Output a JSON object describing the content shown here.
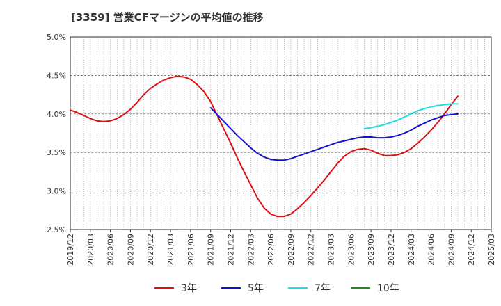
{
  "chart_data": {
    "type": "line",
    "title": "[3359]  営業CFマージンの平均値の推移",
    "xlabel": "",
    "ylabel": "",
    "x_ticks": [
      "2019/12",
      "2020/03",
      "2020/06",
      "2020/09",
      "2020/12",
      "2021/03",
      "2021/06",
      "2021/09",
      "2021/12",
      "2022/03",
      "2022/06",
      "2022/09",
      "2022/12",
      "2023/03",
      "2023/06",
      "2023/09",
      "2023/12",
      "2024/03",
      "2024/06",
      "2024/09",
      "2024/12",
      "2025/03"
    ],
    "ylim": [
      2.5,
      5.0
    ],
    "y_ticks": [
      {
        "value": 2.5,
        "label": "2.5%"
      },
      {
        "value": 3.0,
        "label": "3.0%"
      },
      {
        "value": 3.5,
        "label": "3.5%"
      },
      {
        "value": 4.0,
        "label": "4.0%"
      },
      {
        "value": 4.5,
        "label": "4.5%"
      },
      {
        "value": 5.0,
        "label": "5.0%"
      }
    ],
    "grid": true,
    "legend_position": "bottom",
    "series": [
      {
        "name": "3年",
        "color": "#dd1111",
        "points": [
          [
            "2019/12",
            4.05
          ],
          [
            "2020/01",
            4.02
          ],
          [
            "2020/02",
            3.98
          ],
          [
            "2020/03",
            3.94
          ],
          [
            "2020/04",
            3.91
          ],
          [
            "2020/05",
            3.9
          ],
          [
            "2020/06",
            3.91
          ],
          [
            "2020/07",
            3.94
          ],
          [
            "2020/08",
            3.99
          ],
          [
            "2020/09",
            4.06
          ],
          [
            "2020/10",
            4.15
          ],
          [
            "2020/11",
            4.25
          ],
          [
            "2020/12",
            4.33
          ],
          [
            "2021/01",
            4.39
          ],
          [
            "2021/02",
            4.44
          ],
          [
            "2021/03",
            4.47
          ],
          [
            "2021/04",
            4.49
          ],
          [
            "2021/05",
            4.48
          ],
          [
            "2021/06",
            4.45
          ],
          [
            "2021/07",
            4.38
          ],
          [
            "2021/08",
            4.29
          ],
          [
            "2021/09",
            4.16
          ],
          [
            "2021/10",
            3.98
          ],
          [
            "2021/11",
            3.8
          ],
          [
            "2021/12",
            3.62
          ],
          [
            "2022/01",
            3.43
          ],
          [
            "2022/02",
            3.25
          ],
          [
            "2022/03",
            3.08
          ],
          [
            "2022/04",
            2.91
          ],
          [
            "2022/05",
            2.78
          ],
          [
            "2022/06",
            2.7
          ],
          [
            "2022/07",
            2.67
          ],
          [
            "2022/08",
            2.67
          ],
          [
            "2022/09",
            2.7
          ],
          [
            "2022/10",
            2.77
          ],
          [
            "2022/11",
            2.85
          ],
          [
            "2022/12",
            2.94
          ],
          [
            "2023/01",
            3.04
          ],
          [
            "2023/02",
            3.14
          ],
          [
            "2023/03",
            3.25
          ],
          [
            "2023/04",
            3.36
          ],
          [
            "2023/05",
            3.45
          ],
          [
            "2023/06",
            3.51
          ],
          [
            "2023/07",
            3.54
          ],
          [
            "2023/08",
            3.55
          ],
          [
            "2023/09",
            3.53
          ],
          [
            "2023/10",
            3.49
          ],
          [
            "2023/11",
            3.46
          ],
          [
            "2023/12",
            3.46
          ],
          [
            "2024/01",
            3.47
          ],
          [
            "2024/02",
            3.5
          ],
          [
            "2024/03",
            3.55
          ],
          [
            "2024/04",
            3.62
          ],
          [
            "2024/05",
            3.7
          ],
          [
            "2024/06",
            3.79
          ],
          [
            "2024/07",
            3.89
          ],
          [
            "2024/08",
            4.0
          ],
          [
            "2024/09",
            4.12
          ],
          [
            "2024/10",
            4.23
          ]
        ]
      },
      {
        "name": "5年",
        "color": "#1111cc",
        "points": [
          [
            "2021/09",
            4.08
          ],
          [
            "2021/10",
            3.99
          ],
          [
            "2021/11",
            3.9
          ],
          [
            "2021/12",
            3.81
          ],
          [
            "2022/01",
            3.72
          ],
          [
            "2022/02",
            3.64
          ],
          [
            "2022/03",
            3.56
          ],
          [
            "2022/04",
            3.49
          ],
          [
            "2022/05",
            3.44
          ],
          [
            "2022/06",
            3.41
          ],
          [
            "2022/07",
            3.4
          ],
          [
            "2022/08",
            3.4
          ],
          [
            "2022/09",
            3.42
          ],
          [
            "2022/10",
            3.45
          ],
          [
            "2022/11",
            3.48
          ],
          [
            "2022/12",
            3.51
          ],
          [
            "2023/01",
            3.54
          ],
          [
            "2023/02",
            3.57
          ],
          [
            "2023/03",
            3.6
          ],
          [
            "2023/04",
            3.63
          ],
          [
            "2023/05",
            3.65
          ],
          [
            "2023/06",
            3.67
          ],
          [
            "2023/07",
            3.69
          ],
          [
            "2023/08",
            3.7
          ],
          [
            "2023/09",
            3.7
          ],
          [
            "2023/10",
            3.69
          ],
          [
            "2023/11",
            3.69
          ],
          [
            "2023/12",
            3.7
          ],
          [
            "2024/01",
            3.72
          ],
          [
            "2024/02",
            3.75
          ],
          [
            "2024/03",
            3.79
          ],
          [
            "2024/04",
            3.84
          ],
          [
            "2024/05",
            3.88
          ],
          [
            "2024/06",
            3.92
          ],
          [
            "2024/07",
            3.95
          ],
          [
            "2024/08",
            3.98
          ],
          [
            "2024/09",
            3.99
          ],
          [
            "2024/10",
            4.0
          ]
        ]
      },
      {
        "name": "7年",
        "color": "#22dddd",
        "points": [
          [
            "2023/08",
            3.81
          ],
          [
            "2023/09",
            3.82
          ],
          [
            "2023/10",
            3.84
          ],
          [
            "2023/11",
            3.86
          ],
          [
            "2023/12",
            3.89
          ],
          [
            "2024/01",
            3.92
          ],
          [
            "2024/02",
            3.96
          ],
          [
            "2024/03",
            4.0
          ],
          [
            "2024/04",
            4.04
          ],
          [
            "2024/05",
            4.07
          ],
          [
            "2024/06",
            4.09
          ],
          [
            "2024/07",
            4.11
          ],
          [
            "2024/08",
            4.12
          ],
          [
            "2024/09",
            4.13
          ],
          [
            "2024/10",
            4.13
          ]
        ]
      },
      {
        "name": "10年",
        "color": "#228822",
        "points": []
      }
    ]
  }
}
